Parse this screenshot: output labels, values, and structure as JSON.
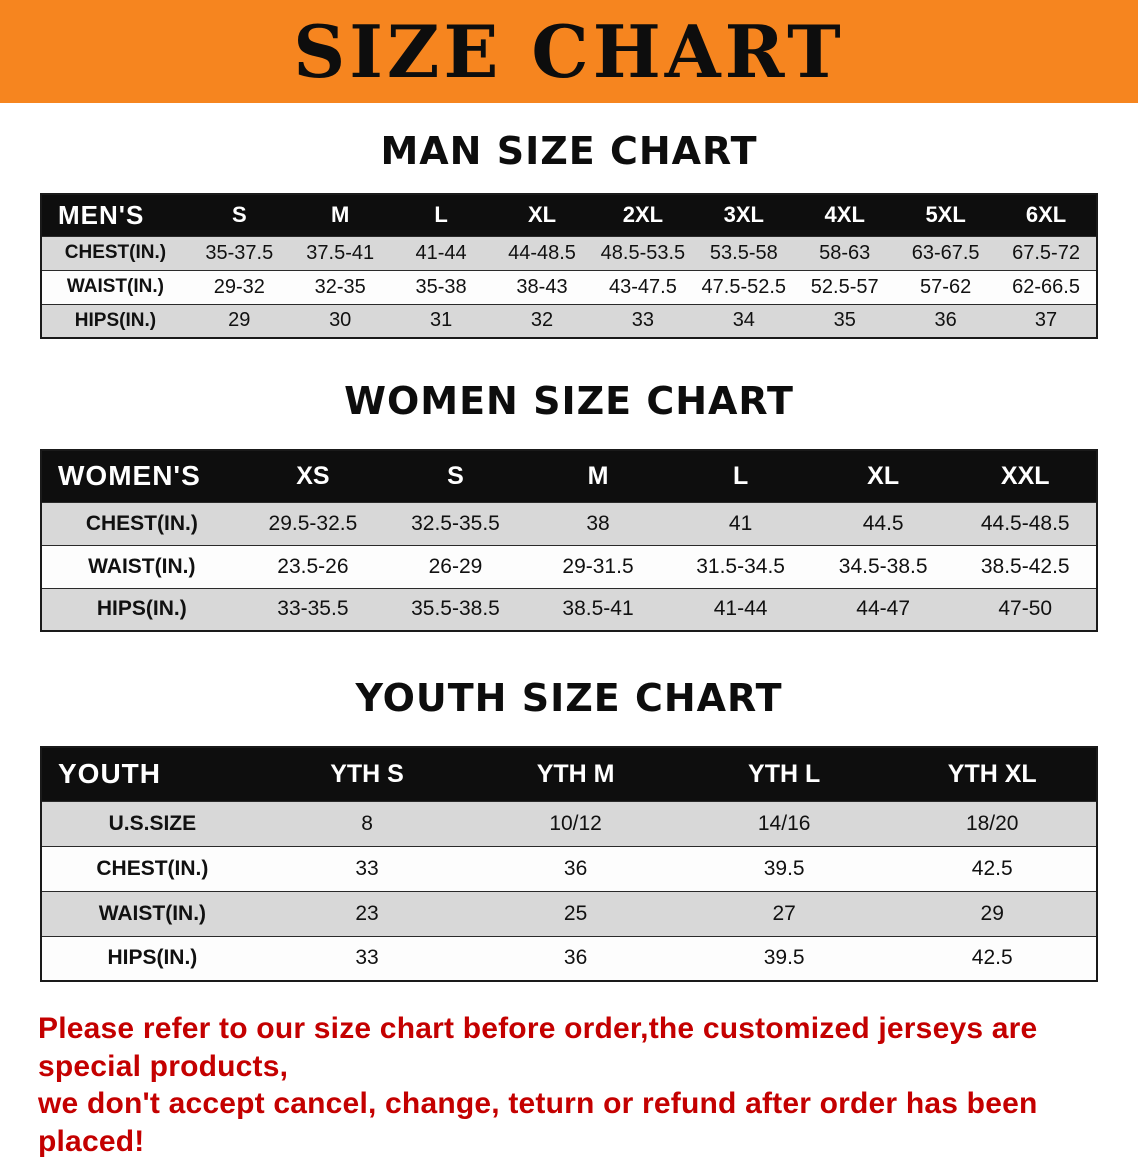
{
  "banner": {
    "title": "SIZE CHART",
    "bg_color": "#f6851f",
    "text_color": "#0d0d0d"
  },
  "sections": [
    {
      "id": "men",
      "heading": "MAN SIZE CHART",
      "table": {
        "title": "MEN'S",
        "columns": [
          "S",
          "M",
          "L",
          "XL",
          "2XL",
          "3XL",
          "4XL",
          "5XL",
          "6XL"
        ],
        "rows": [
          {
            "label": "CHEST(IN.)",
            "values": [
              "35-37.5",
              "37.5-41",
              "41-44",
              "44-48.5",
              "48.5-53.5",
              "53.5-58",
              "58-63",
              "63-67.5",
              "67.5-72"
            ]
          },
          {
            "label": "WAIST(IN.)",
            "values": [
              "29-32",
              "32-35",
              "35-38",
              "38-43",
              "43-47.5",
              "47.5-52.5",
              "52.5-57",
              "57-62",
              "62-66.5"
            ]
          },
          {
            "label": "HIPS(IN.)",
            "values": [
              "29",
              "30",
              "31",
              "32",
              "33",
              "34",
              "35",
              "36",
              "37"
            ]
          }
        ]
      }
    },
    {
      "id": "women",
      "heading": "WOMEN SIZE CHART",
      "table": {
        "title": "WOMEN'S",
        "columns": [
          "XS",
          "S",
          "M",
          "L",
          "XL",
          "XXL"
        ],
        "rows": [
          {
            "label": "CHEST(IN.)",
            "values": [
              "29.5-32.5",
              "32.5-35.5",
              "38",
              "41",
              "44.5",
              "44.5-48.5"
            ]
          },
          {
            "label": "WAIST(IN.)",
            "values": [
              "23.5-26",
              "26-29",
              "29-31.5",
              "31.5-34.5",
              "34.5-38.5",
              "38.5-42.5"
            ]
          },
          {
            "label": "HIPS(IN.)",
            "values": [
              "33-35.5",
              "35.5-38.5",
              "38.5-41",
              "41-44",
              "44-47",
              "47-50"
            ]
          }
        ]
      }
    },
    {
      "id": "youth",
      "heading": "YOUTH SIZE CHART",
      "table": {
        "title": "YOUTH",
        "columns": [
          "YTH S",
          "YTH M",
          "YTH L",
          "YTH XL"
        ],
        "rows": [
          {
            "label": "U.S.SIZE",
            "values": [
              "8",
              "10/12",
              "14/16",
              "18/20"
            ]
          },
          {
            "label": "CHEST(IN.)",
            "values": [
              "33",
              "36",
              "39.5",
              "42.5"
            ]
          },
          {
            "label": "WAIST(IN.)",
            "values": [
              "23",
              "25",
              "27",
              "29"
            ]
          },
          {
            "label": "HIPS(IN.)",
            "values": [
              "33",
              "36",
              "39.5",
              "42.5"
            ]
          }
        ]
      }
    }
  ],
  "footer_note": {
    "lines": [
      "Please refer to our size chart before order,the customized jerseys are special products,",
      "we don't accept cancel, change, teturn or refund after order has been placed!"
    ],
    "color": "#c40000"
  }
}
